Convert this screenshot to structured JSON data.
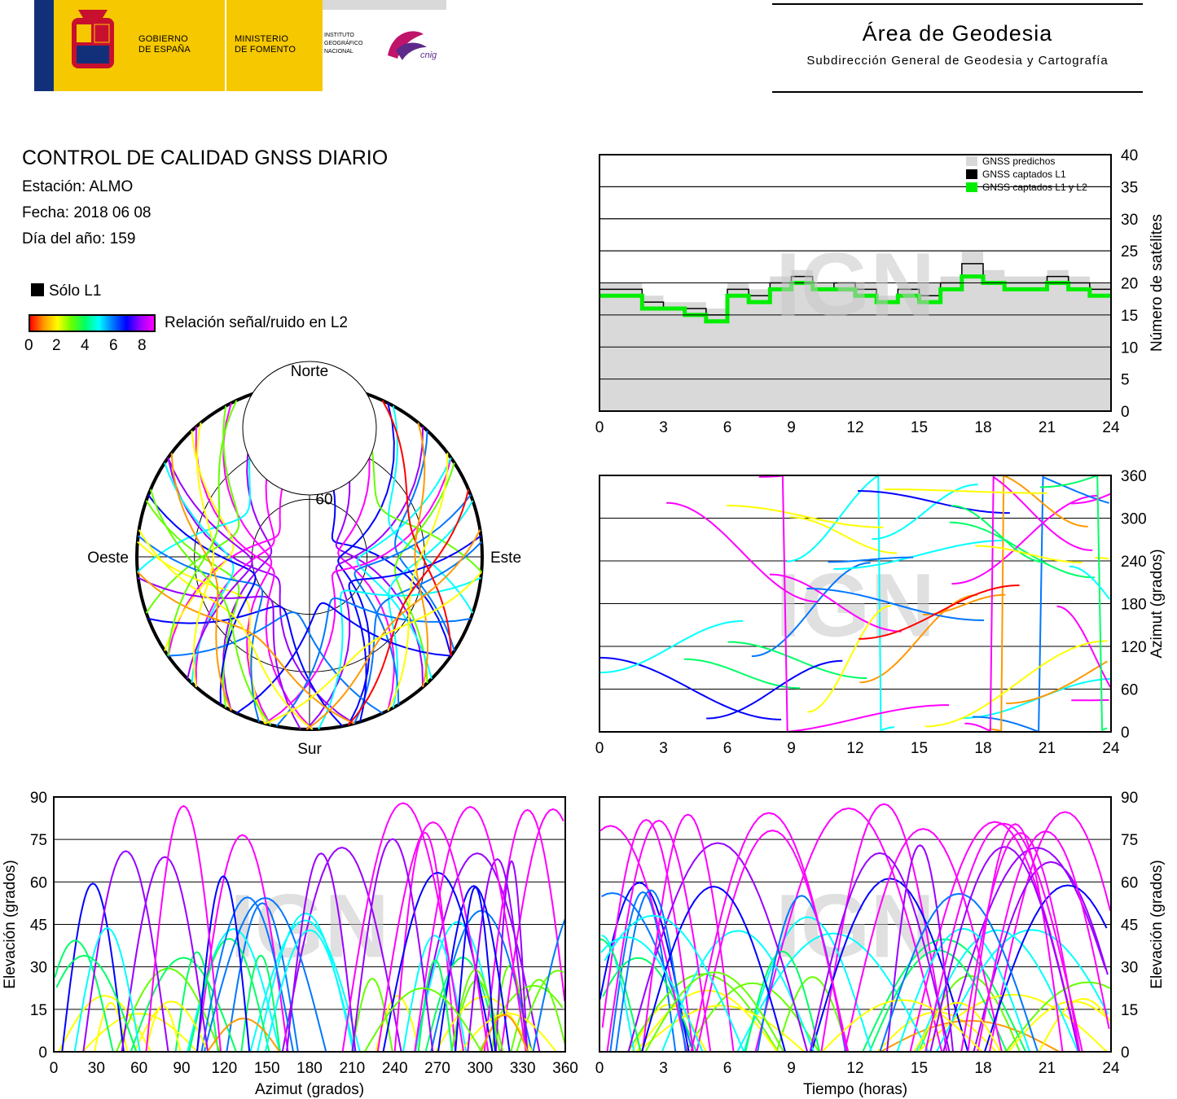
{
  "header": {
    "gov_line1": "GOBIERNO",
    "gov_line2": "DE ESPAÑA",
    "min_line1": "MINISTERIO",
    "min_line2": "DE FOMENTO",
    "ign_line1": "INSTITUTO",
    "ign_line2": "GEOGRÁFICO",
    "ign_line3": "NACIONAL",
    "cnig": "cnig",
    "area_title": "Área de Geodesia",
    "area_subtitle": "Subdirección General de Geodesia y Cartografía"
  },
  "info": {
    "title": "CONTROL DE CALIDAD GNSS DIARIO",
    "station": "Estación: ALMO",
    "date": "Fecha: 2018 06 08",
    "doy": "Día del año: 159"
  },
  "legend": {
    "solo_l1": "Sólo L1",
    "snr_label": "Relación señal/ruido en L2",
    "snr_ticks": [
      "0",
      "2",
      "4",
      "6",
      "8"
    ]
  },
  "colors": {
    "predicted": "#d9d9d9",
    "l1": "#000000",
    "l1l2": "#00ee00",
    "snr_scale": [
      "#ff0000",
      "#ff9900",
      "#ffff00",
      "#66ff00",
      "#00ff66",
      "#00ffff",
      "#0077ff",
      "#0000ff",
      "#9900ff",
      "#ff00ff"
    ]
  },
  "watermark": "IGN",
  "chart_data": [
    {
      "id": "satellites",
      "type": "area",
      "ylabel": "Número de satélites",
      "ylim": [
        0,
        40
      ],
      "yticks": [
        0,
        5,
        10,
        15,
        20,
        25,
        30,
        35,
        40
      ],
      "xlim": [
        0,
        24
      ],
      "xticks": [
        0,
        3,
        6,
        9,
        12,
        15,
        18,
        21,
        24
      ],
      "grid": true,
      "legend_position": "top-right",
      "x": [
        0,
        1,
        2,
        3,
        4,
        5,
        6,
        7,
        8,
        9,
        10,
        11,
        12,
        13,
        14,
        15,
        16,
        17,
        18,
        19,
        20,
        21,
        22,
        23,
        24
      ],
      "series": [
        {
          "name": "GNSS predichos",
          "values": [
            20,
            20,
            18,
            17,
            17,
            16,
            20,
            19,
            21,
            22,
            20,
            20,
            20,
            18,
            20,
            20,
            21,
            25,
            22,
            21,
            21,
            22,
            21,
            20,
            20
          ]
        },
        {
          "name": "GNSS captados L1",
          "values": [
            19,
            19,
            17,
            16,
            16,
            15,
            19,
            18,
            20,
            21,
            19,
            20,
            19,
            17,
            19,
            18,
            20,
            23,
            20,
            20,
            20,
            21,
            20,
            19,
            19
          ]
        },
        {
          "name": "GNSS captados L1 y L2",
          "values": [
            18,
            18,
            16,
            16,
            15,
            14,
            18,
            17,
            19,
            20,
            19,
            19,
            18,
            17,
            18,
            17,
            19,
            21,
            20,
            19,
            19,
            20,
            19,
            18,
            18
          ]
        }
      ]
    },
    {
      "id": "skyplot",
      "type": "scatter",
      "directions": [
        "Norte",
        "Sur",
        "Este",
        "Oeste"
      ],
      "elevation_rings": [
        "30",
        "60"
      ],
      "tracks": [
        {
          "az_start": 200,
          "az_end": 340,
          "el_max": 70,
          "snr": 8
        },
        {
          "az_start": 160,
          "az_end": 20,
          "el_max": 75,
          "snr": 7
        },
        {
          "az_start": 230,
          "az_end": 310,
          "el_max": 50,
          "snr": 3
        },
        {
          "az_start": 130,
          "az_end": 50,
          "el_max": 45,
          "snr": 4
        },
        {
          "az_start": 190,
          "az_end": 270,
          "el_max": 60,
          "snr": 6
        },
        {
          "az_start": 170,
          "az_end": 90,
          "el_max": 65,
          "snr": 5
        },
        {
          "az_start": 300,
          "az_end": 200,
          "el_max": 40,
          "snr": 2
        },
        {
          "az_start": 60,
          "az_end": 160,
          "el_max": 35,
          "snr": 1
        }
      ]
    },
    {
      "id": "azimuth",
      "type": "scatter",
      "ylabel": "Azimut (grados)",
      "ylim": [
        0,
        360
      ],
      "yticks": [
        0,
        60,
        120,
        180,
        240,
        300,
        360
      ],
      "xlim": [
        0,
        24
      ],
      "xticks": [
        0,
        3,
        6,
        9,
        12,
        15,
        18,
        21,
        24
      ],
      "grid": true
    },
    {
      "id": "elev_vs_az",
      "type": "scatter",
      "xlabel": "Azimut (grados)",
      "ylabel": "Elevación (grados)",
      "xlim": [
        0,
        360
      ],
      "xticks": [
        0,
        30,
        60,
        90,
        120,
        150,
        180,
        210,
        240,
        270,
        300,
        330,
        360
      ],
      "ylim": [
        0,
        90
      ],
      "yticks": [
        0,
        15,
        30,
        45,
        60,
        75,
        90
      ],
      "grid": true
    },
    {
      "id": "elev_vs_time",
      "type": "line",
      "xlabel": "Tiempo (horas)",
      "ylabel": "Elevación (grados)",
      "xlim": [
        0,
        24
      ],
      "xticks": [
        0,
        3,
        6,
        9,
        12,
        15,
        18,
        21,
        24
      ],
      "ylim": [
        0,
        90
      ],
      "yticks": [
        0,
        15,
        30,
        45,
        60,
        75,
        90
      ],
      "grid": true
    }
  ]
}
